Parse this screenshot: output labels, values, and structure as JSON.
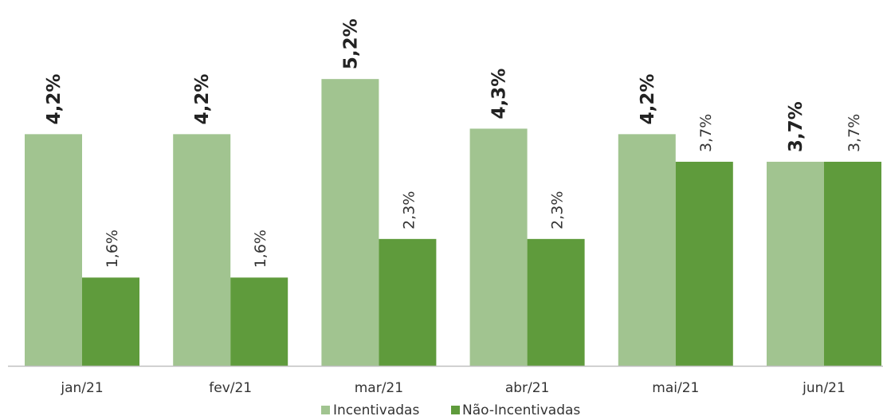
{
  "chart_data": {
    "type": "bar",
    "categories": [
      "jan/21",
      "fev/21",
      "mar/21",
      "abr/21",
      "mai/21",
      "jun/21"
    ],
    "series": [
      {
        "name": "Incentivadas",
        "color": "#a1c490",
        "values": [
          4.2,
          4.2,
          5.2,
          4.3,
          4.2,
          3.7
        ],
        "labels": [
          "4,2%",
          "4,2%",
          "5,2%",
          "4,3%",
          "4,2%",
          "3,7%"
        ],
        "label_style": "bold"
      },
      {
        "name": "Não-Incentivadas",
        "color": "#5f9b3c",
        "values": [
          1.6,
          1.6,
          2.3,
          2.3,
          3.7,
          3.7
        ],
        "labels": [
          "1,6%",
          "1,6%",
          "2,3%",
          "2,3%",
          "3,7%",
          "3,7%"
        ],
        "label_style": "normal"
      }
    ],
    "ylim": [
      0,
      7
    ],
    "grid": false,
    "legend": "bottom",
    "axis_color": "#bfbfbf"
  }
}
